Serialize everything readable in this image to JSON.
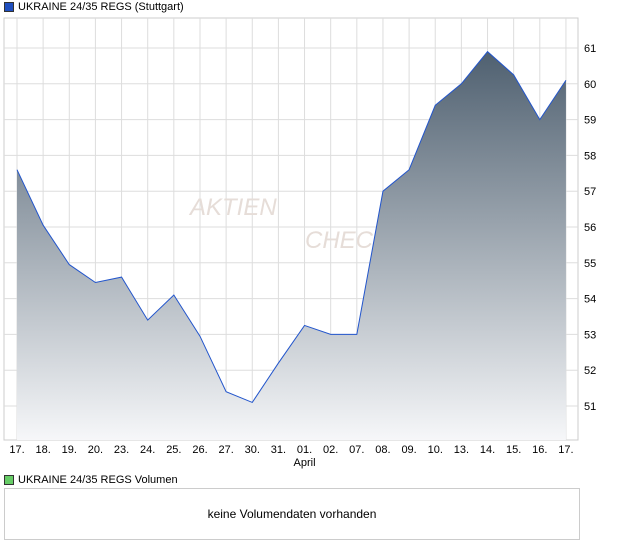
{
  "chart_data": {
    "type": "area",
    "title": "UKRAINE 24/35 REGS (Stuttgart)",
    "x": [
      "17.",
      "18.",
      "19.",
      "20.",
      "23.",
      "24.",
      "25.",
      "26.",
      "27.",
      "30.",
      "31.",
      "01.",
      "02.",
      "07.",
      "08.",
      "09.",
      "10.",
      "13.",
      "14.",
      "15.",
      "16.",
      "17."
    ],
    "x_sublabel": {
      "index": 11,
      "text": "April"
    },
    "values": [
      57.6,
      56.05,
      54.95,
      54.45,
      54.6,
      53.4,
      54.1,
      52.95,
      51.4,
      51.1,
      52.2,
      53.25,
      53.0,
      53.0,
      57.0,
      57.6,
      59.4,
      60.0,
      60.9,
      60.25,
      59.0,
      60.1
    ],
    "yticks": [
      51,
      52,
      53,
      54,
      55,
      56,
      57,
      58,
      59,
      60,
      61
    ],
    "ylim": [
      50.1,
      62.0
    ],
    "grid": true,
    "watermark": "AKTIEN CHECK",
    "colors": {
      "line": "#2255cc",
      "fill_top": "#4f6070",
      "fill_bottom": "#f6f7f9",
      "legend": "#1f4fbf",
      "grid": "#dddddd"
    }
  },
  "legend": {
    "main": "UKRAINE 24/35 REGS (Stuttgart)",
    "volume": "UKRAINE 24/35 REGS Volumen"
  },
  "volume": {
    "message": "keine Volumendaten vorhanden",
    "legend_color": "#66cc66"
  }
}
